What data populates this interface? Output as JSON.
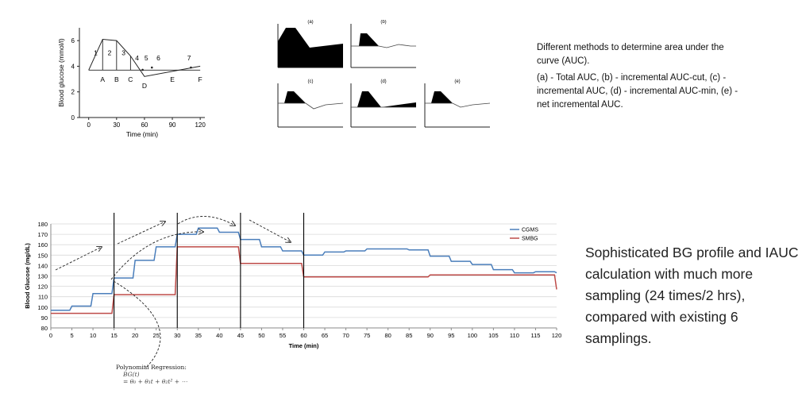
{
  "fig_auc_segments": {
    "xlabel": "Time (min)",
    "ylabel": "Blood glucose (mmol/l)",
    "xticks": [
      "0",
      "30",
      "60",
      "90",
      "120"
    ],
    "yticks": [
      "0",
      "2",
      "4",
      "6"
    ],
    "area_labels": [
      "1",
      "2",
      "3",
      "4",
      "5",
      "6",
      "7"
    ],
    "point_labels": [
      "A",
      "B",
      "C",
      "D",
      "E",
      "F"
    ]
  },
  "fig_methods": {
    "panel_labels": [
      "(a)",
      "(b)",
      "(c)",
      "(d)",
      "(e)"
    ]
  },
  "description": {
    "line1": "Different methods to determine area under the curve (AUC).",
    "line2": "(a) - Total AUC, (b) - incremental AUC-cut, (c) - incremental AUC, (d) - incremental AUC-min, (e) - net incremental AUC."
  },
  "summary_text": "Sophisticated BG profile and IAUC calculation with much more sampling (24 times/2 hrs), compared with existing 6 samplings.",
  "poly_note": {
    "title": "Polynomial Regression:",
    "eq1": "BG(t)",
    "eq2": "= θ₀ + θ₁t + θ₂t² + ⋯"
  },
  "colors": {
    "cgms": "#4a7ebb",
    "smbg": "#be4b48",
    "grid": "#d9d9d9"
  },
  "chart_data": [
    {
      "type": "line",
      "title": "",
      "xlabel": "Time (min)",
      "ylabel": "Blood glucose (mmol/l)",
      "xlim": [
        -10,
        125
      ],
      "ylim": [
        0,
        7
      ],
      "xticks": [
        0,
        30,
        60,
        90,
        120
      ],
      "yticks": [
        0,
        2,
        4,
        6
      ],
      "series": [
        {
          "x": [
            0,
            15,
            30,
            45,
            60,
            120
          ],
          "y": [
            3.7,
            6.1,
            6.0,
            4.8,
            3.2,
            4.0
          ]
        }
      ],
      "annotations": [
        "1",
        "2",
        "3",
        "4",
        "5",
        "6",
        "7",
        "A",
        "B",
        "C",
        "D",
        "E",
        "F"
      ]
    },
    {
      "type": "area",
      "panels": [
        "(a)",
        "(b)",
        "(c)",
        "(d)",
        "(e)"
      ],
      "note": "Schematic panels of AUC methods; no numeric axes printed"
    },
    {
      "type": "line",
      "title": "",
      "xlabel": "Time (min)",
      "ylabel": "Blood Glucose (mg/dL)",
      "xlim": [
        0,
        120
      ],
      "ylim": [
        80,
        180
      ],
      "xticks": [
        0,
        5,
        10,
        15,
        20,
        25,
        30,
        35,
        40,
        45,
        50,
        55,
        60,
        65,
        70,
        75,
        80,
        85,
        90,
        95,
        100,
        105,
        110,
        115,
        120
      ],
      "yticks": [
        80,
        90,
        100,
        110,
        120,
        130,
        140,
        150,
        160,
        170,
        180
      ],
      "grid": true,
      "legend_position": "top-right",
      "vlines": [
        15,
        30,
        45,
        60
      ],
      "series": [
        {
          "name": "CGMS",
          "x": [
            0,
            5,
            10,
            15,
            20,
            25,
            30,
            35,
            40,
            45,
            50,
            55,
            60,
            65,
            70,
            75,
            80,
            85,
            90,
            95,
            100,
            105,
            110,
            115,
            120
          ],
          "y": [
            97,
            101,
            113,
            128,
            145,
            158,
            170,
            176,
            172,
            165,
            158,
            154,
            150,
            153,
            154,
            156,
            156,
            155,
            149,
            144,
            141,
            136,
            133,
            134,
            133
          ]
        },
        {
          "name": "SMBG",
          "x": [
            0,
            5,
            10,
            15,
            20,
            25,
            30,
            35,
            40,
            45,
            50,
            55,
            60,
            65,
            70,
            75,
            80,
            85,
            90,
            95,
            100,
            105,
            110,
            115,
            120
          ],
          "y": [
            94,
            94,
            94,
            112,
            112,
            112,
            158,
            158,
            158,
            142,
            142,
            142,
            129,
            129,
            129,
            129,
            129,
            129,
            131,
            131,
            131,
            131,
            131,
            131,
            117
          ]
        }
      ]
    }
  ]
}
